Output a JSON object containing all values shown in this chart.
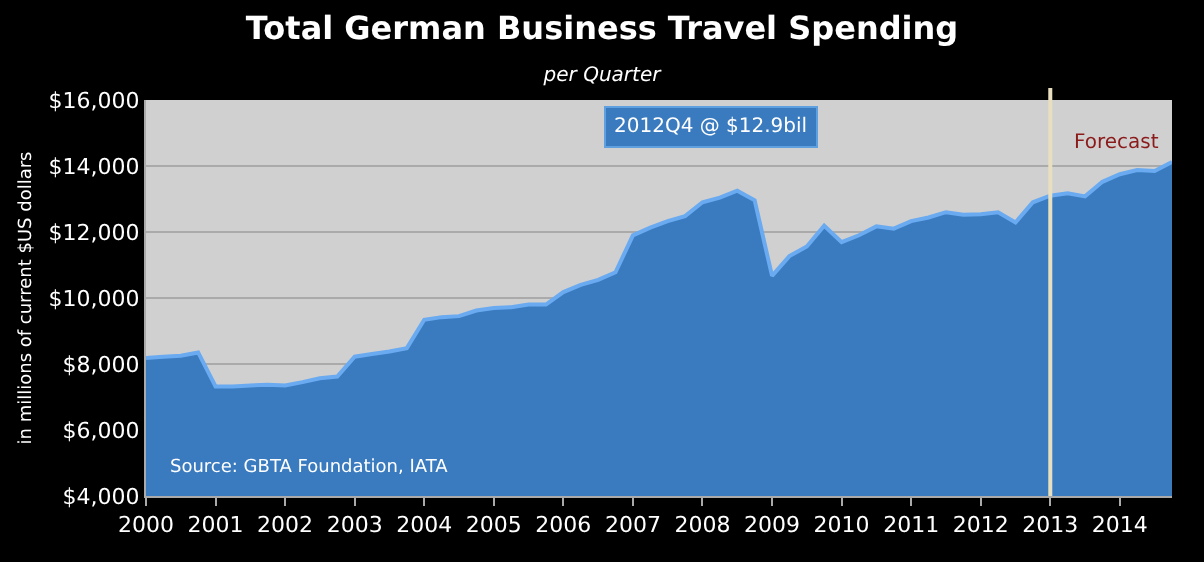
{
  "chart_data": {
    "type": "area",
    "title": "Total German Business Travel Spending",
    "subtitle": "per Quarter",
    "ylabel": "in millions of current $US dollars",
    "x": [
      2000,
      2000.25,
      2000.5,
      2000.75,
      2001,
      2001.25,
      2001.5,
      2001.75,
      2002,
      2002.25,
      2002.5,
      2002.75,
      2003,
      2003.25,
      2003.5,
      2003.75,
      2004,
      2004.25,
      2004.5,
      2004.75,
      2005,
      2005.25,
      2005.5,
      2005.75,
      2006,
      2006.25,
      2006.5,
      2006.75,
      2007,
      2007.25,
      2007.5,
      2007.75,
      2008,
      2008.25,
      2008.5,
      2008.75,
      2009,
      2009.25,
      2009.5,
      2009.75,
      2010,
      2010.25,
      2010.5,
      2010.75,
      2011,
      2011.25,
      2011.5,
      2011.75,
      2012,
      2012.25,
      2012.5,
      2012.75,
      2013,
      2013.25,
      2013.5,
      2013.75,
      2014,
      2014.25,
      2014.5,
      2014.75
    ],
    "series": [
      {
        "color": "#3a7bbf",
        "values": [
          8180,
          8220,
          8250,
          8350,
          7320,
          7320,
          7350,
          7370,
          7350,
          7450,
          7570,
          7620,
          8220,
          8300,
          8380,
          8480,
          9340,
          9420,
          9450,
          9620,
          9700,
          9720,
          9800,
          9800,
          10180,
          10400,
          10550,
          10780,
          11900,
          12130,
          12330,
          12480,
          12900,
          13040,
          13250,
          12960,
          10670,
          11270,
          11560,
          12190,
          11690,
          11900,
          12170,
          12100,
          12330,
          12440,
          12600,
          12520,
          12540,
          12600,
          12290,
          12900,
          13100,
          13170,
          13080,
          13520,
          13750,
          13880,
          13850,
          14120
        ]
      }
    ],
    "xlim": [
      2000,
      2014.75
    ],
    "xticks": [
      2000,
      2001,
      2002,
      2003,
      2004,
      2005,
      2006,
      2007,
      2008,
      2009,
      2010,
      2011,
      2012,
      2013,
      2014
    ],
    "ylim": [
      4000,
      16000
    ],
    "yticks": [
      {
        "value": 4000,
        "label": "$4,000"
      },
      {
        "value": 6000,
        "label": "$6,000"
      },
      {
        "value": 8000,
        "label": "$8,000"
      },
      {
        "value": 10000,
        "label": "$10,000"
      },
      {
        "value": 12000,
        "label": "$12,000"
      },
      {
        "value": 14000,
        "label": "$14,000"
      },
      {
        "value": 16000,
        "label": "$16,000"
      }
    ],
    "grid": "y",
    "ref_lines": [
      {
        "axis": "x",
        "value": 2013,
        "label": "Forecast",
        "color": "#e8dfc0"
      }
    ],
    "annotations": [
      "2012Q4 @ $12.9bil",
      "Source: GBTA Foundation, IATA"
    ]
  }
}
